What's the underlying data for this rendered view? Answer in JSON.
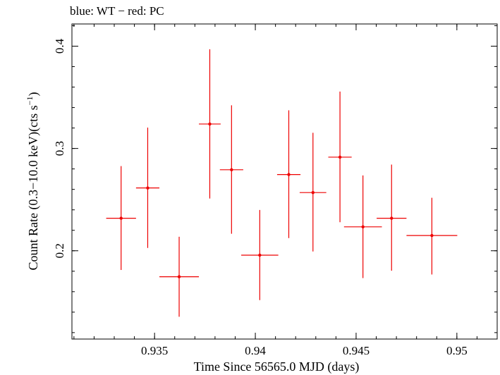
{
  "chart_data": {
    "type": "scatter",
    "title": "blue: WT − red: PC",
    "xlabel": "Time Since 56565.0 MJD (days)",
    "ylabel_parts": [
      "Count Rate (0.3−10.0 keV)(cts s",
      "−1",
      ")"
    ],
    "xlim": [
      0.9309,
      0.952
    ],
    "ylim": [
      0.1137,
      0.4217
    ],
    "xticks": [
      {
        "value": 0.935,
        "label": "0.935"
      },
      {
        "value": 0.94,
        "label": "0.94"
      },
      {
        "value": 0.945,
        "label": "0.945"
      },
      {
        "value": 0.95,
        "label": "0.95"
      }
    ],
    "yticks": [
      {
        "value": 0.2,
        "label": "0.2"
      },
      {
        "value": 0.3,
        "label": "0.3"
      },
      {
        "value": 0.4,
        "label": "0.4"
      }
    ],
    "x_minor_step": 0.001,
    "y_minor_step": 0.02,
    "grid": false,
    "series": [
      {
        "color": "#ee0000",
        "points": [
          {
            "x": 0.93334,
            "xerr": 0.00074,
            "y": 0.2318,
            "ylo": 0.1812,
            "yhi": 0.2828
          },
          {
            "x": 0.93466,
            "xerr": 0.00058,
            "y": 0.2614,
            "ylo": 0.2028,
            "yhi": 0.3204
          },
          {
            "x": 0.93622,
            "xerr": 0.00098,
            "y": 0.1746,
            "ylo": 0.1355,
            "yhi": 0.2137
          },
          {
            "x": 0.93774,
            "xerr": 0.00054,
            "y": 0.3239,
            "ylo": 0.2511,
            "yhi": 0.397
          },
          {
            "x": 0.93882,
            "xerr": 0.00058,
            "y": 0.2792,
            "ylo": 0.2166,
            "yhi": 0.3422
          },
          {
            "x": 0.94022,
            "xerr": 0.00092,
            "y": 0.1957,
            "ylo": 0.1518,
            "yhi": 0.2399
          },
          {
            "x": 0.94166,
            "xerr": 0.00058,
            "y": 0.2745,
            "ylo": 0.2124,
            "yhi": 0.3373
          },
          {
            "x": 0.94286,
            "xerr": 0.00066,
            "y": 0.2569,
            "ylo": 0.1993,
            "yhi": 0.3153
          },
          {
            "x": 0.9442,
            "xerr": 0.00058,
            "y": 0.2915,
            "ylo": 0.2279,
            "yhi": 0.3556
          },
          {
            "x": 0.94534,
            "xerr": 0.00094,
            "y": 0.2234,
            "ylo": 0.1733,
            "yhi": 0.2736
          },
          {
            "x": 0.94676,
            "xerr": 0.00074,
            "y": 0.2318,
            "ylo": 0.1805,
            "yhi": 0.2842
          },
          {
            "x": 0.94876,
            "xerr": 0.00126,
            "y": 0.2149,
            "ylo": 0.1768,
            "yhi": 0.2518
          }
        ]
      }
    ]
  }
}
